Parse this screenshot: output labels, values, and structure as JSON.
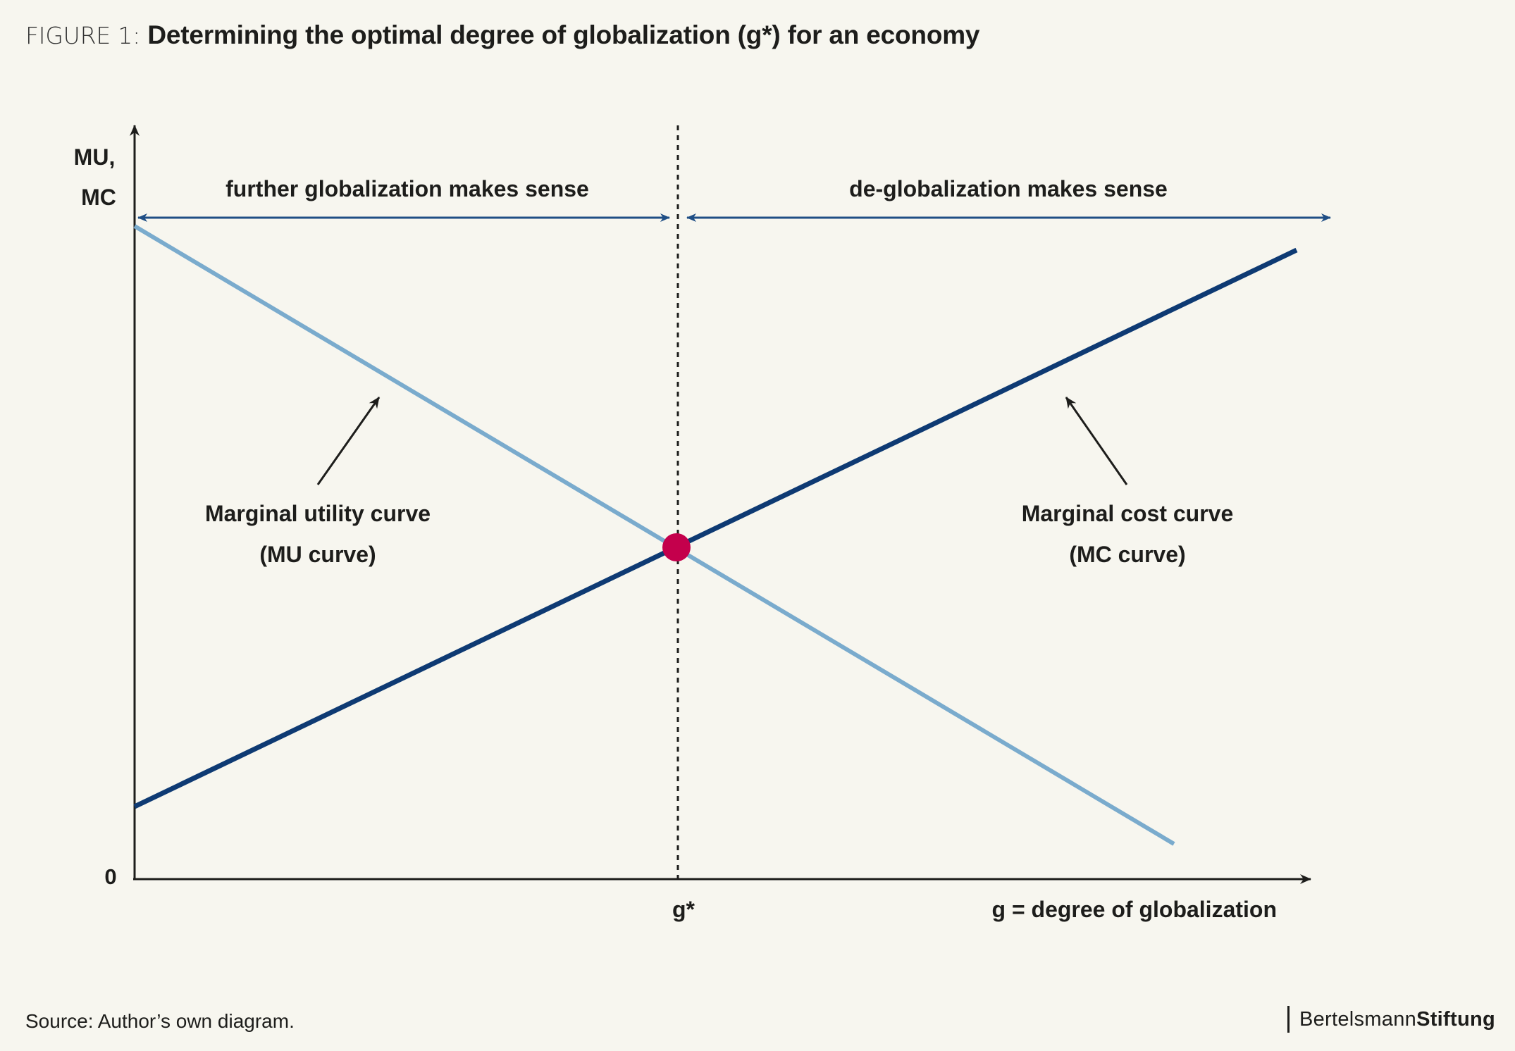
{
  "title": {
    "prefix": "FIGURE 1: ",
    "main": "Determining the optimal degree of globalization (g*) for an economy"
  },
  "diagram": {
    "y_axis_label_line1": "MU,",
    "y_axis_label_line2": "MC",
    "origin_label": "0",
    "x_axis_label": "g = degree of globalization",
    "g_star_label": "g*",
    "left_region_label": "further globalization makes sense",
    "right_region_label": "de-globalization makes sense",
    "mu_label_line1": "Marginal utility curve",
    "mu_label_line2": "(MU curve)",
    "mc_label_line1": "Marginal cost curve",
    "mc_label_line2": "(MC curve)",
    "colors": {
      "mu_curve": "#7aabcd",
      "mc_curve": "#0e3a73",
      "range_arrows": "#1f4e85",
      "equilibrium_point": "#c4004c",
      "axes": "#1d1d1b"
    }
  },
  "source": "Source: Author’s own diagram.",
  "brand": {
    "part1": "Bertelsmann",
    "part2": "Stiftung"
  }
}
